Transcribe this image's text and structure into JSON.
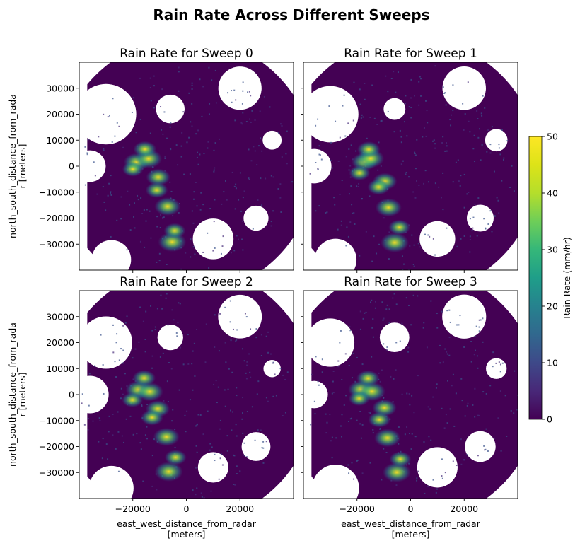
{
  "chart_data": {
    "type": "heatmap",
    "title": "Rain Rate Across Different Sweeps",
    "xlabel_line1": "east_west_distance_from_radar",
    "xlabel_line2": "[meters]",
    "ylabel_line1": "north_south_distance_from_rada",
    "ylabel_line2": "r [meters]",
    "xlim": [
      -40000,
      40000
    ],
    "ylim": [
      -40000,
      40000
    ],
    "xticks": [
      -20000,
      0,
      20000
    ],
    "xtick_labels": [
      "−20000",
      "0",
      "20000"
    ],
    "yticks": [
      -30000,
      -20000,
      -10000,
      0,
      10000,
      20000,
      30000
    ],
    "ytick_labels": [
      "−30000",
      "−20000",
      "−10000",
      "0",
      "10000",
      "20000",
      "30000"
    ],
    "colorbar": {
      "label": "Rain Rate (mm/hr)",
      "range": [
        0,
        50
      ],
      "ticks": [
        0,
        10,
        20,
        30,
        40,
        50
      ],
      "tick_labels": [
        "0",
        "10",
        "20",
        "30",
        "40",
        "50"
      ],
      "colormap": "viridis"
    },
    "panels": [
      {
        "title": "Rain Rate for Sweep 0"
      },
      {
        "title": "Rain Rate for Sweep 1"
      },
      {
        "title": "Rain Rate for Sweep 2"
      },
      {
        "title": "Rain Rate for Sweep 3"
      }
    ],
    "heavy_rain_cells": [
      {
        "x": -18000,
        "y": 1000,
        "rate": 38
      },
      {
        "x": -14000,
        "y": 2000,
        "rate": 42
      },
      {
        "x": -15000,
        "y": 7000,
        "rate": 30
      },
      {
        "x": -10000,
        "y": -5000,
        "rate": 34
      },
      {
        "x": -8000,
        "y": -16000,
        "rate": 40
      },
      {
        "x": -12000,
        "y": -9000,
        "rate": 28
      },
      {
        "x": -6000,
        "y": -29000,
        "rate": 46
      },
      {
        "x": -4000,
        "y": -24000,
        "rate": 26
      },
      {
        "x": -20000,
        "y": -2000,
        "rate": 24
      }
    ]
  }
}
